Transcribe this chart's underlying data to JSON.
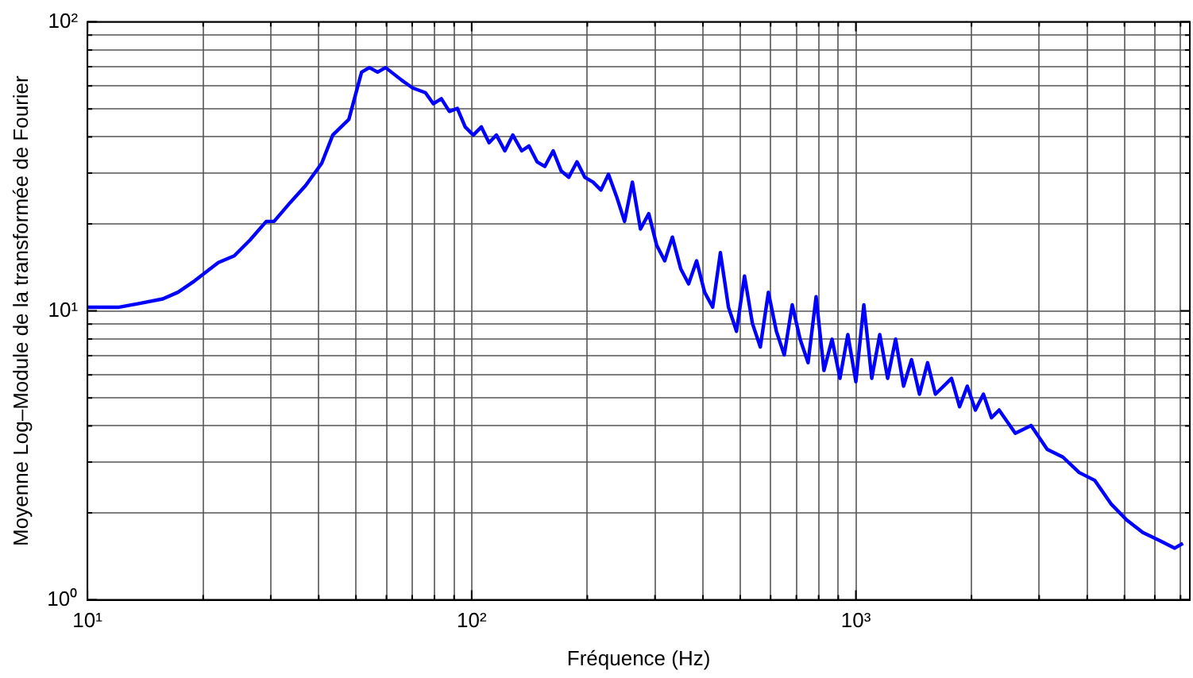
{
  "chart_data": {
    "type": "line",
    "xlabel": "Fréquence (Hz)",
    "ylabel": "Moyenne Log–Module de la transformée de Fourier",
    "log": "xy",
    "grid": true,
    "line_style": "solid",
    "marker": "none",
    "legend": false,
    "xlim": [
      10,
      7400
    ],
    "ylim": [
      1,
      100
    ],
    "xticks": [
      {
        "value": 10,
        "label": "10¹"
      },
      {
        "value": 20,
        "label": null
      },
      {
        "value": 30,
        "label": null
      },
      {
        "value": 40,
        "label": null
      },
      {
        "value": 50,
        "label": null
      },
      {
        "value": 60,
        "label": null
      },
      {
        "value": 70,
        "label": null
      },
      {
        "value": 80,
        "label": null
      },
      {
        "value": 90,
        "label": null
      },
      {
        "value": 100,
        "label": "10²"
      },
      {
        "value": 200,
        "label": null
      },
      {
        "value": 300,
        "label": null
      },
      {
        "value": 400,
        "label": null
      },
      {
        "value": 500,
        "label": null
      },
      {
        "value": 600,
        "label": null
      },
      {
        "value": 700,
        "label": null
      },
      {
        "value": 800,
        "label": null
      },
      {
        "value": 900,
        "label": null
      },
      {
        "value": 1000,
        "label": "10³"
      },
      {
        "value": 2000,
        "label": null
      },
      {
        "value": 3000,
        "label": null
      },
      {
        "value": 4000,
        "label": null
      },
      {
        "value": 5000,
        "label": null
      },
      {
        "value": 6000,
        "label": null
      },
      {
        "value": 7000,
        "label": null
      }
    ],
    "yticks": [
      {
        "value": 1,
        "label": "10⁰"
      },
      {
        "value": 2,
        "label": null
      },
      {
        "value": 3,
        "label": null
      },
      {
        "value": 4,
        "label": null
      },
      {
        "value": 5,
        "label": null
      },
      {
        "value": 6,
        "label": null
      },
      {
        "value": 7,
        "label": null
      },
      {
        "value": 8,
        "label": null
      },
      {
        "value": 9,
        "label": null
      },
      {
        "value": 10,
        "label": "10¹"
      },
      {
        "value": 20,
        "label": null
      },
      {
        "value": 30,
        "label": null
      },
      {
        "value": 40,
        "label": null
      },
      {
        "value": 50,
        "label": null
      },
      {
        "value": 60,
        "label": null
      },
      {
        "value": 70,
        "label": null
      },
      {
        "value": 80,
        "label": null
      },
      {
        "value": 90,
        "label": null
      },
      {
        "value": 100,
        "label": "10²"
      }
    ],
    "series": [
      {
        "color": "#0000ff",
        "x": [
          10,
          12.1,
          13.6,
          15.7,
          17.2,
          19.0,
          21.9,
          24.1,
          26.5,
          29.2,
          30.6,
          33.7,
          37.0,
          40.7,
          43.5,
          47.9,
          51.7,
          54.2,
          56.9,
          59.7,
          65.6,
          70.2,
          75.8,
          79.5,
          83.4,
          87.5,
          91.8,
          96.2,
          101,
          106,
          111,
          116,
          122,
          128,
          135,
          141,
          148,
          155,
          163,
          171,
          179,
          188,
          197,
          207,
          217,
          227,
          239,
          250,
          262,
          275,
          289,
          303,
          318,
          333,
          350,
          367,
          385,
          404,
          424,
          444,
          466,
          489,
          513,
          538,
          564,
          592,
          621,
          651,
          683,
          716,
          751,
          788,
          826,
          867,
          909,
          953,
          1000,
          1049,
          1100,
          1154,
          1210,
          1269,
          1331,
          1396,
          1464,
          1537,
          1611,
          1774,
          1862,
          1950,
          2047,
          2148,
          2254,
          2360,
          2600,
          2858,
          3148,
          3459,
          3811,
          4188,
          4613,
          5070,
          5585,
          6138,
          6761,
          7100
        ],
        "values": [
          10.3,
          10.3,
          10.6,
          11.0,
          11.6,
          12.7,
          14.7,
          15.5,
          17.6,
          20.4,
          20.4,
          23.7,
          27.2,
          32.4,
          40.6,
          46.0,
          67.0,
          69.5,
          67.0,
          69.5,
          63.0,
          59.1,
          56.9,
          52.1,
          54.2,
          49.0,
          50.2,
          43.3,
          40.6,
          43.3,
          38.2,
          40.6,
          35.8,
          40.6,
          35.8,
          37.2,
          32.8,
          31.6,
          35.8,
          30.5,
          29.0,
          32.8,
          29.0,
          27.9,
          26.2,
          29.7,
          24.6,
          20.4,
          27.9,
          19.2,
          21.7,
          16.9,
          14.9,
          18.0,
          14.0,
          12.4,
          14.9,
          11.6,
          10.3,
          15.9,
          10.3,
          8.5,
          13.2,
          9.05,
          7.5,
          11.6,
          8.5,
          7.04,
          10.5,
          7.98,
          6.62,
          11.2,
          6.22,
          7.98,
          5.84,
          8.28,
          5.69,
          10.5,
          5.84,
          8.28,
          5.84,
          7.98,
          5.49,
          6.78,
          5.15,
          6.62,
          5.15,
          5.84,
          4.66,
          5.49,
          4.54,
          5.15,
          4.27,
          4.54,
          3.77,
          4.01,
          3.32,
          3.12,
          2.76,
          2.59,
          2.15,
          1.89,
          1.71,
          1.61,
          1.51,
          1.57
        ]
      }
    ]
  }
}
